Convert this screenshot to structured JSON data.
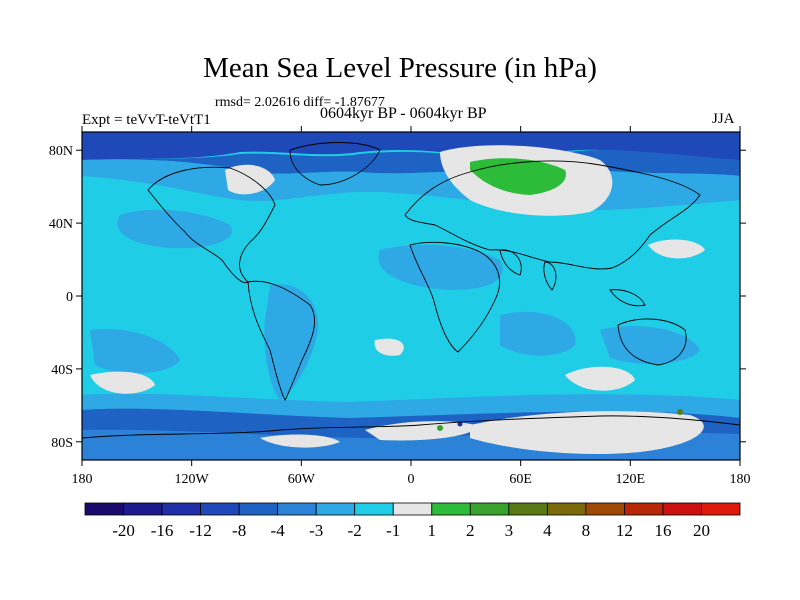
{
  "title": "Mean Sea Level Pressure (in hPa)",
  "stats_text": "rmsd= 2.02616 diff= -1.87677",
  "experiment": "Expt = teVvT-teVtT1",
  "period": "0604kyr BP - 0604kyr BP",
  "season": "JJA",
  "map": {
    "projection": "cylindrical-equidistant",
    "lon_range": [
      -180,
      180
    ],
    "lat_range": [
      -90,
      90
    ],
    "x_ticks": [
      {
        "value": -180,
        "label": "180"
      },
      {
        "value": -120,
        "label": "120W"
      },
      {
        "value": -60,
        "label": "60W"
      },
      {
        "value": 0,
        "label": "0"
      },
      {
        "value": 60,
        "label": "60E"
      },
      {
        "value": 120,
        "label": "120E"
      },
      {
        "value": 180,
        "label": "180"
      }
    ],
    "y_ticks": [
      {
        "value": 80,
        "label": "80N"
      },
      {
        "value": 40,
        "label": "40N"
      },
      {
        "value": 0,
        "label": "0"
      },
      {
        "value": -40,
        "label": "40S"
      },
      {
        "value": -80,
        "label": "80S"
      }
    ]
  },
  "colorbar": {
    "labels": [
      "-20",
      "-16",
      "-12",
      "-8",
      "-4",
      "-3",
      "-2",
      "-1",
      "1",
      "2",
      "3",
      "4",
      "8",
      "12",
      "16",
      "20"
    ],
    "colors": [
      "#1a0a6b",
      "#1c1a8c",
      "#1f2fa8",
      "#1f48b8",
      "#1e63c4",
      "#2b82d6",
      "#2fa8e6",
      "#1fcde6",
      "#e6e6e6",
      "#2dbb3a",
      "#38a22c",
      "#587a14",
      "#7a6a0c",
      "#a04a08",
      "#b82808",
      "#cc1010",
      "#e01a0a"
    ]
  }
}
